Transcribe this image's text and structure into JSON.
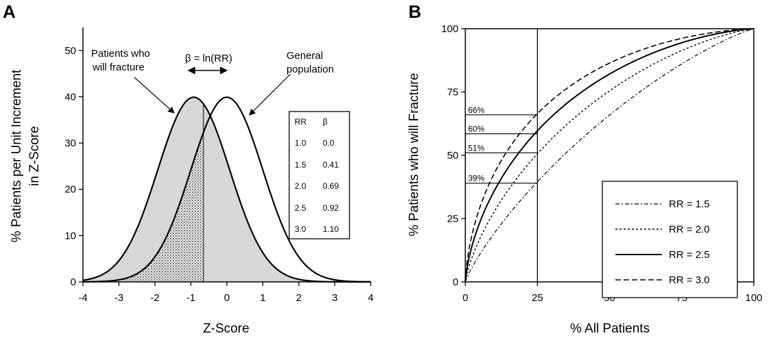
{
  "figure": {
    "chart_data": [
      {
        "type": "line",
        "panel": "A",
        "xlabel": "Z-Score",
        "ylabel_lines": [
          "% Patients per Unit Increment",
          "in Z-Score"
        ],
        "xlim": [
          -4,
          4
        ],
        "ylim": [
          0,
          55
        ],
        "x_ticks": [
          "-4",
          "-3",
          "-2",
          "-1",
          "0",
          "1",
          "2",
          "3",
          "4"
        ],
        "y_ticks": [
          "0",
          "10",
          "20",
          "30",
          "40",
          "50"
        ],
        "series": [
          {
            "mean": -0.92,
            "sd": 1,
            "peak": 39.9,
            "fill": "#d7d7d7"
          },
          {
            "mean": 0,
            "sd": 1,
            "peak": 39.9
          }
        ],
        "shaded_below_z": -0.65,
        "annotations": {
          "fracture": [
            "Patients who",
            "will fracture"
          ],
          "beta": "β = ln(RR)",
          "general": [
            "General",
            "population"
          ]
        },
        "table": {
          "headers": [
            "RR",
            "β"
          ],
          "rows": [
            [
              "1.0",
              "0.0"
            ],
            [
              "1.5",
              "0.41"
            ],
            [
              "2.0",
              "0.69"
            ],
            [
              "2.5",
              "0.92"
            ],
            [
              "3.0",
              "1.10"
            ]
          ]
        }
      },
      {
        "type": "line",
        "panel": "B",
        "xlabel": "% All Patients",
        "ylabel": "% Patients who will Fracture",
        "xlim": [
          0,
          100
        ],
        "ylim": [
          0,
          100
        ],
        "x_ticks": [
          "0",
          "25",
          "50",
          "75",
          "100"
        ],
        "y_ticks": [
          "0",
          "25",
          "50",
          "75",
          "100"
        ],
        "series": [
          {
            "name": "RR = 1.5",
            "beta": 0.41,
            "dash": "6,3,2,3",
            "width": 1.2
          },
          {
            "name": "RR = 2.0",
            "beta": 0.69,
            "dash": "3,3",
            "width": 1.4
          },
          {
            "name": "RR = 2.5",
            "beta": 0.92,
            "dash": "",
            "width": 2
          },
          {
            "name": "RR = 3.0",
            "beta": 1.1,
            "dash": "8,4",
            "width": 1.6
          }
        ],
        "vline_x": 25,
        "callouts": [
          {
            "y": 66,
            "label": "66%"
          },
          {
            "y": 58.5,
            "label": "60%"
          },
          {
            "y": 51,
            "label": "51%"
          },
          {
            "y": 39,
            "label": "39%"
          }
        ]
      }
    ]
  }
}
